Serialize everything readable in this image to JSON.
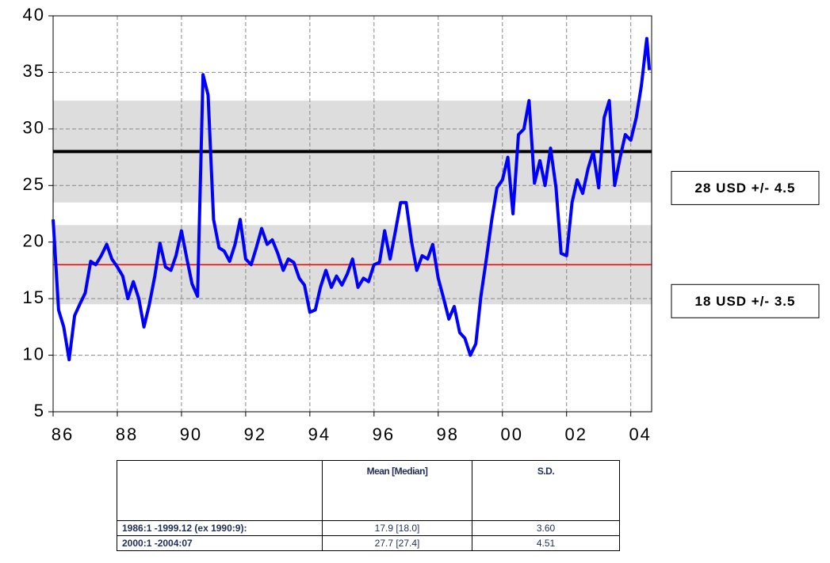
{
  "chart_data": {
    "type": "line",
    "x": [
      1986,
      1986.17,
      1986.33,
      1986.5,
      1986.67,
      1986.83,
      1987,
      1987.17,
      1987.33,
      1987.5,
      1987.67,
      1987.83,
      1988,
      1988.17,
      1988.33,
      1988.5,
      1988.67,
      1988.83,
      1989,
      1989.17,
      1989.33,
      1989.5,
      1989.67,
      1989.83,
      1990,
      1990.17,
      1990.33,
      1990.5,
      1990.67,
      1990.83,
      1991,
      1991.17,
      1991.33,
      1991.5,
      1991.67,
      1991.83,
      1992,
      1992.17,
      1992.33,
      1992.5,
      1992.67,
      1992.83,
      1993,
      1993.17,
      1993.33,
      1993.5,
      1993.67,
      1993.83,
      1994,
      1994.17,
      1994.33,
      1994.5,
      1994.67,
      1994.83,
      1995,
      1995.17,
      1995.33,
      1995.5,
      1995.67,
      1995.83,
      1996,
      1996.17,
      1996.33,
      1996.5,
      1996.67,
      1996.83,
      1997,
      1997.17,
      1997.33,
      1997.5,
      1997.67,
      1997.83,
      1998,
      1998.17,
      1998.33,
      1998.5,
      1998.67,
      1998.83,
      1999,
      1999.17,
      1999.33,
      1999.5,
      1999.67,
      1999.83,
      2000,
      2000.17,
      2000.33,
      2000.5,
      2000.67,
      2000.83,
      2001,
      2001.17,
      2001.33,
      2001.5,
      2001.67,
      2001.83,
      2002,
      2002.17,
      2002.33,
      2002.5,
      2002.67,
      2002.83,
      2003,
      2003.17,
      2003.33,
      2003.5,
      2003.67,
      2003.83,
      2004,
      2004.17,
      2004.33,
      2004.5,
      2004.58
    ],
    "values": [
      22.0,
      14.0,
      12.5,
      9.6,
      13.5,
      14.5,
      15.5,
      18.3,
      18.0,
      18.8,
      19.8,
      18.5,
      17.8,
      17.0,
      15.0,
      16.5,
      15.0,
      12.5,
      14.5,
      17.0,
      19.9,
      17.8,
      17.5,
      18.8,
      21.0,
      18.5,
      16.3,
      15.2,
      34.8,
      33.0,
      22.0,
      19.5,
      19.2,
      18.3,
      19.8,
      22.0,
      18.5,
      18.0,
      19.5,
      21.2,
      19.8,
      20.2,
      19.0,
      17.5,
      18.5,
      18.2,
      16.8,
      16.2,
      13.8,
      14.0,
      16.0,
      17.5,
      16.0,
      17.0,
      16.2,
      17.2,
      18.5,
      16.0,
      16.8,
      16.5,
      18.0,
      18.2,
      21.0,
      18.5,
      21.0,
      23.5,
      23.5,
      20.0,
      17.5,
      18.8,
      18.5,
      19.8,
      16.8,
      15.0,
      13.2,
      14.3,
      12.0,
      11.5,
      10.0,
      11.0,
      15.2,
      18.5,
      22.0,
      24.8,
      25.5,
      27.5,
      22.5,
      29.5,
      30.0,
      32.5,
      25.2,
      27.2,
      25.0,
      28.3,
      24.8,
      19.0,
      18.8,
      23.5,
      25.5,
      24.3,
      26.5,
      28.0,
      24.8,
      31.0,
      32.5,
      25.0,
      27.5,
      29.5,
      29.0,
      31.0,
      33.8,
      38.0,
      35.2
    ],
    "color": "#0000ff",
    "xlim": [
      1986,
      2004.65
    ],
    "xticks": [
      {
        "value": 1986,
        "label": "86"
      },
      {
        "value": 1988,
        "label": "88"
      },
      {
        "value": 1990,
        "label": "90"
      },
      {
        "value": 1992,
        "label": "92"
      },
      {
        "value": 1994,
        "label": "94"
      },
      {
        "value": 1996,
        "label": "96"
      },
      {
        "value": 1998,
        "label": "98"
      },
      {
        "value": 2000,
        "label": "00"
      },
      {
        "value": 2002,
        "label": "02"
      },
      {
        "value": 2004,
        "label": "04"
      }
    ],
    "ylim": [
      5,
      40
    ],
    "yticks": [
      5,
      10,
      15,
      20,
      25,
      30,
      35,
      40
    ],
    "grid": true,
    "bands": [
      {
        "center": 28,
        "halfwidth": 4.5,
        "line_color": "#000000",
        "label": "28 USD +/- 4.5"
      },
      {
        "center": 18,
        "halfwidth": 3.5,
        "line_color": "#ff0000",
        "label": "18 USD +/- 3.5"
      }
    ]
  },
  "table": {
    "header": [
      "Mean [Median]",
      "S.D."
    ],
    "rows": [
      [
        "1986:1 -1999.12 (ex 1990:9):",
        "17.9 [18.0]",
        "3.60"
      ],
      [
        "2000:1 -2004:07",
        "27.7 [27.4]",
        "4.51"
      ]
    ]
  }
}
